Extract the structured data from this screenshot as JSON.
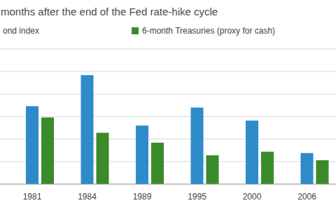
{
  "chart_data": {
    "type": "bar",
    "title": "months after the end of the Fed rate-hike cycle",
    "categories": [
      "1981",
      "1984",
      "1989",
      "1995",
      "2000",
      "2006"
    ],
    "series": [
      {
        "name": "ond index",
        "color": "#2e8bc9",
        "values": [
          17.3,
          24.2,
          13.0,
          17.0,
          14.1,
          6.9
        ]
      },
      {
        "name": "6-month Treasuries (proxy for cash)",
        "color": "#3b8b2b",
        "values": [
          14.8,
          11.4,
          9.2,
          6.4,
          7.2,
          5.3
        ]
      }
    ],
    "ylim": [
      0,
      30
    ],
    "yticks": [
      0,
      5,
      10,
      15,
      20,
      25,
      30
    ],
    "grid": true,
    "tick_labels": "x",
    "legend": "top-left"
  }
}
